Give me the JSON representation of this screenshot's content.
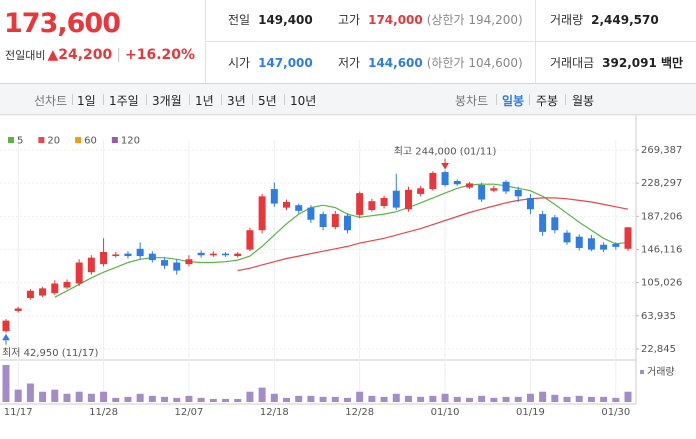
{
  "header": {
    "price": "173,600",
    "change_label": "전일대비",
    "change": "▲24,200",
    "change_rate": "+16.20%",
    "stats": [
      {
        "label": "전일",
        "value": "149,400"
      },
      {
        "label": "고가",
        "value": "174,000",
        "note": "(상한가 194,200)"
      },
      {
        "label": "거래량",
        "value": "2,449,570"
      },
      {
        "label": "시가",
        "value": "147,000"
      },
      {
        "label": "저가",
        "value": "144,600",
        "note": "(하한가 104,600)"
      },
      {
        "label": "거래대금",
        "value": "392,091 백만"
      }
    ]
  },
  "tabs": {
    "line_chart": "선차트",
    "periods": [
      "1일",
      "1주일",
      "3개월",
      "1년",
      "3년",
      "5년",
      "10년"
    ],
    "candle_chart": "봉차트",
    "candle_periods": [
      "일봉",
      "주봉",
      "월봉"
    ]
  },
  "chart_data": {
    "type": "candlestick",
    "categories": [
      null,
      "11/17",
      null,
      null,
      null,
      null,
      null,
      null,
      "11/28",
      null,
      null,
      null,
      null,
      null,
      null,
      "12/07",
      null,
      null,
      null,
      null,
      null,
      null,
      "12/18",
      null,
      null,
      null,
      null,
      null,
      null,
      "12/28",
      null,
      null,
      null,
      null,
      null,
      null,
      "01/10",
      null,
      null,
      null,
      null,
      null,
      null,
      "01/19",
      null,
      null,
      null,
      null,
      null,
      null,
      "01/30",
      null
    ],
    "open": [
      45000,
      70000,
      86000,
      89000,
      92000,
      99000,
      104000,
      118000,
      128000,
      138000,
      141000,
      147000,
      141000,
      133000,
      130000,
      128000,
      142000,
      139000,
      141000,
      138000,
      146000,
      170000,
      221000,
      198000,
      201000,
      198000,
      190000,
      174000,
      188000,
      189000,
      195000,
      200000,
      219000,
      196000,
      215000,
      221000,
      242000,
      231000,
      223000,
      226000,
      219000,
      230000,
      220000,
      210000,
      190000,
      186000,
      167000,
      162000,
      160000,
      152000,
      153000,
      147000
    ],
    "high": [
      60000,
      75000,
      97000,
      100000,
      108000,
      109000,
      134000,
      139000,
      160000,
      143000,
      144000,
      155000,
      144000,
      136000,
      134000,
      139000,
      145000,
      144000,
      143000,
      143000,
      173000,
      215000,
      229000,
      208000,
      203000,
      201000,
      193000,
      194000,
      191000,
      218000,
      209000,
      213000,
      240000,
      224000,
      225000,
      243000,
      244000,
      233000,
      230000,
      229000,
      225000,
      232000,
      224000,
      215000,
      194000,
      189000,
      170000,
      165000,
      164000,
      155000,
      155000,
      174000
    ],
    "low": [
      42950,
      68000,
      84000,
      87000,
      90000,
      97000,
      101000,
      115000,
      125000,
      136000,
      135000,
      134000,
      130000,
      122000,
      115000,
      125000,
      136000,
      137000,
      137000,
      136000,
      144000,
      166000,
      199000,
      195000,
      191000,
      179000,
      170000,
      171000,
      166000,
      185000,
      193000,
      197000,
      195000,
      193000,
      212000,
      219000,
      224000,
      225000,
      221000,
      205000,
      217000,
      215000,
      205000,
      190000,
      163000,
      166000,
      152000,
      145000,
      144000,
      143000,
      146000,
      144600
    ],
    "close": [
      58000,
      73000,
      95000,
      98000,
      104000,
      106000,
      130000,
      136000,
      143000,
      140000,
      138000,
      138000,
      133000,
      126000,
      120000,
      134000,
      139000,
      141000,
      139000,
      141000,
      170000,
      212000,
      203000,
      205000,
      194000,
      183000,
      174000,
      190000,
      170000,
      216000,
      206000,
      210000,
      198000,
      220000,
      222000,
      241000,
      226000,
      227000,
      228000,
      208000,
      222000,
      218000,
      212000,
      196000,
      168000,
      170000,
      155000,
      148000,
      146000,
      146000,
      149400,
      173600
    ],
    "up_color": "#e8363b",
    "down_color": "#2f7de1",
    "series": [
      {
        "name": "5",
        "color": "#5bb447",
        "values": [
          null,
          null,
          null,
          null,
          87000,
          95000,
          103000,
          111000,
          118000,
          124000,
          130000,
          134000,
          136000,
          136000,
          134000,
          131000,
          130000,
          130000,
          131000,
          133000,
          138000,
          150000,
          164000,
          178000,
          190000,
          198000,
          201000,
          198000,
          190000,
          186000,
          188000,
          190000,
          193000,
          198000,
          204000,
          210000,
          216000,
          222000,
          226000,
          227000,
          227000,
          225000,
          222000,
          219000,
          212000,
          202000,
          191000,
          180000,
          170000,
          160000,
          153000,
          155000
        ]
      },
      {
        "name": "20",
        "color": "#e8484b",
        "values": [
          null,
          null,
          null,
          null,
          null,
          null,
          null,
          null,
          null,
          null,
          null,
          null,
          null,
          null,
          null,
          null,
          null,
          null,
          null,
          120000,
          123000,
          127000,
          131000,
          135000,
          138000,
          141000,
          144000,
          147000,
          150000,
          154000,
          157000,
          160000,
          164000,
          168000,
          172000,
          177000,
          182000,
          187000,
          192000,
          196000,
          200000,
          204000,
          207000,
          209000,
          210000,
          210000,
          209000,
          207000,
          205000,
          202000,
          199000,
          196000
        ]
      },
      {
        "name": "60",
        "color": "#f39c12",
        "values": [
          null,
          null,
          null,
          null,
          null,
          null,
          null,
          null,
          null,
          null,
          null,
          null,
          null,
          null,
          null,
          null,
          null,
          null,
          null,
          null,
          null,
          null,
          null,
          null,
          null,
          null,
          null,
          null,
          null,
          null,
          null,
          null,
          null,
          null,
          null,
          null,
          null,
          null,
          null,
          null,
          null,
          null,
          null,
          null,
          null,
          null,
          null,
          null,
          null,
          null,
          null,
          null
        ]
      },
      {
        "name": "120",
        "color": "#9b59b6",
        "values": [
          null,
          null,
          null,
          null,
          null,
          null,
          null,
          null,
          null,
          null,
          null,
          null,
          null,
          null,
          null,
          null,
          null,
          null,
          null,
          null,
          null,
          null,
          null,
          null,
          null,
          null,
          null,
          null,
          null,
          null,
          null,
          null,
          null,
          null,
          null,
          null,
          null,
          null,
          null,
          null,
          null,
          null,
          null,
          null,
          null,
          null,
          null,
          null,
          null,
          null,
          null,
          null
        ]
      }
    ],
    "volume_label": "거래량",
    "volume_color": "#a48cc8",
    "volume": [
      8820000,
      2940000,
      4410000,
      2450000,
      2940000,
      1960000,
      2450000,
      1960000,
      2450000,
      980000,
      1225000,
      1960000,
      1470000,
      1225000,
      980000,
      1470000,
      980000,
      735000,
      735000,
      735000,
      2450000,
      3430000,
      1960000,
      980000,
      1470000,
      1470000,
      1225000,
      1225000,
      980000,
      2450000,
      1470000,
      1225000,
      1960000,
      1470000,
      1225000,
      1470000,
      1960000,
      1225000,
      980000,
      1470000,
      980000,
      1225000,
      1225000,
      1960000,
      2450000,
      1715000,
      1225000,
      1470000,
      1225000,
      1225000,
      980000,
      2449570
    ],
    "high_label": "최고 244,000 (01/11)",
    "low_label": "최저 42,950 (11/17)",
    "ylim": [
      9200,
      281800
    ],
    "yticks": [
      {
        "value": 22845,
        "label": "22,845"
      },
      {
        "value": 63935,
        "label": "63,935"
      },
      {
        "value": 105026,
        "label": "105,026"
      },
      {
        "value": 146116,
        "label": "146,116"
      },
      {
        "value": 187206,
        "label": "187,206"
      },
      {
        "value": 228297,
        "label": "228,297"
      },
      {
        "value": 269387,
        "label": "269,387"
      }
    ],
    "grid": true
  }
}
